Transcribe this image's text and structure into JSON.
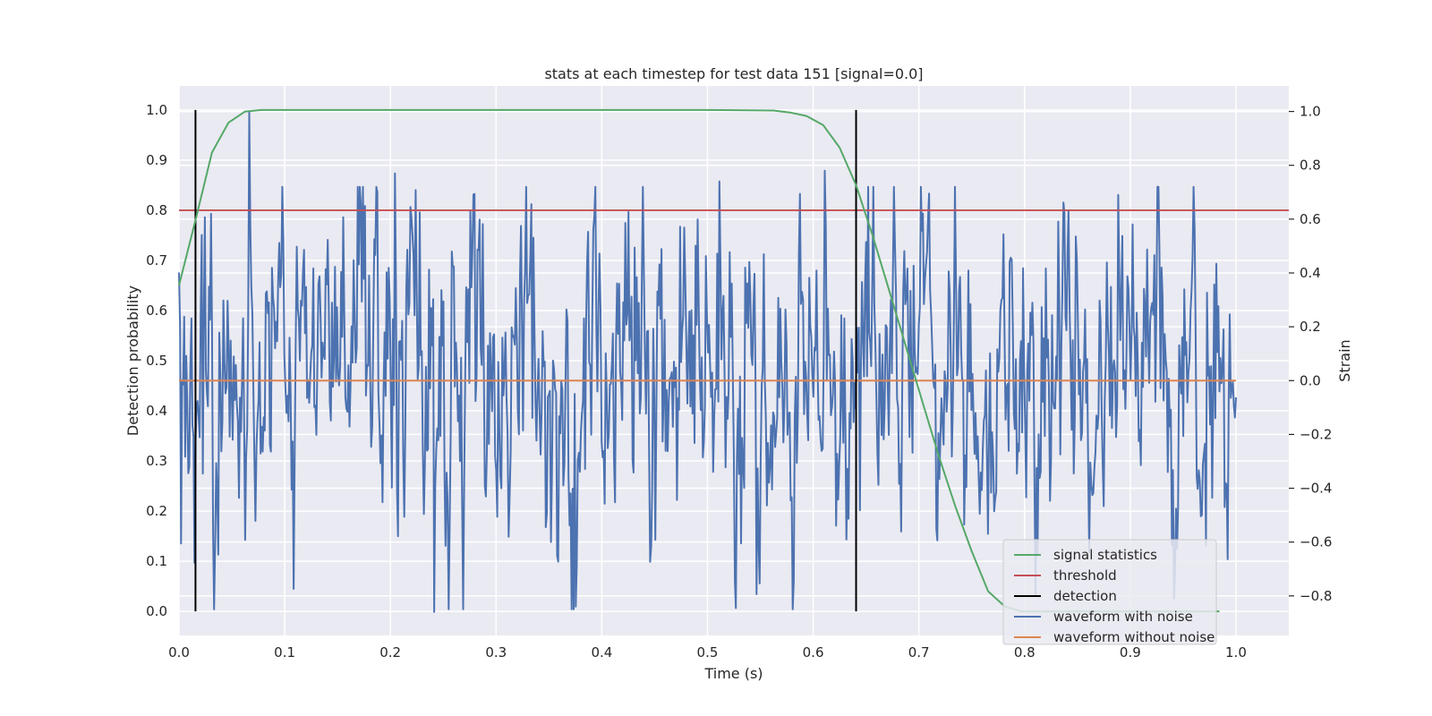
{
  "chart_data": {
    "type": "line",
    "title": "stats at each timestep for test data 151 [signal=0.0]",
    "xlabel": "Time (s)",
    "ylabel": "Detection probability",
    "ylabel_right": "Strain",
    "xlim": [
      0.0,
      1.05
    ],
    "ylim": [
      -0.048,
      1.048
    ],
    "ylim_right": [
      -0.947,
      1.095
    ],
    "grid": true,
    "legend_position": "lower-right",
    "x_ticks": [
      "0.0",
      "0.1",
      "0.2",
      "0.3",
      "0.4",
      "0.5",
      "0.6",
      "0.7",
      "0.8",
      "0.9",
      "1.0"
    ],
    "y_ticks": [
      "0.0",
      "0.1",
      "0.2",
      "0.3",
      "0.4",
      "0.5",
      "0.6",
      "0.7",
      "0.8",
      "0.9",
      "1.0"
    ],
    "y_ticks_right": [
      "−0.8",
      "−0.6",
      "−0.4",
      "−0.2",
      "0.0",
      "0.2",
      "0.4",
      "0.6",
      "0.8",
      "1.0"
    ],
    "series": [
      {
        "name": "signal statistics",
        "axis": "left",
        "color": "#55a868",
        "x": [
          0.0,
          0.0156,
          0.0312,
          0.0469,
          0.0625,
          0.0781,
          0.1,
          0.2,
          0.3,
          0.4,
          0.5,
          0.5625,
          0.5781,
          0.5938,
          0.6094,
          0.625,
          0.6406,
          0.6562,
          0.6719,
          0.6875,
          0.7031,
          0.7188,
          0.7344,
          0.75,
          0.7656,
          0.7812,
          0.7969,
          0.8125,
          0.8281,
          0.8438,
          0.8594,
          0.875,
          0.8906,
          0.9062,
          0.9219,
          0.9375,
          0.9531,
          0.9688,
          0.9844
        ],
        "y": [
          0.65,
          0.78,
          0.915,
          0.975,
          0.997,
          1.0,
          1.0,
          1.0,
          1.0,
          1.0,
          1.0,
          0.999,
          0.995,
          0.988,
          0.97,
          0.925,
          0.85,
          0.75,
          0.64,
          0.53,
          0.42,
          0.31,
          0.21,
          0.12,
          0.04,
          0.01,
          0.0,
          0.0,
          0.0,
          0.0,
          0.0,
          0.0,
          0.0,
          0.0,
          0.0,
          0.0,
          0.0,
          0.0,
          0.0
        ]
      },
      {
        "name": "threshold",
        "axis": "left",
        "color": "#c44e52",
        "x": [
          0.0,
          1.05
        ],
        "y": [
          0.8,
          0.8
        ]
      },
      {
        "name": "detection",
        "axis": "left",
        "color": "#000000",
        "x": [
          0.0156,
          0.6406
        ],
        "y_range": [
          0.0,
          1.0
        ]
      },
      {
        "name": "waveform with noise",
        "axis": "right",
        "color": "#4c72b0",
        "x_range": [
          0.0,
          1.0
        ],
        "samples": 1024,
        "y_range": [
          -0.85,
          1.0
        ],
        "highlight_points": [
          {
            "x": 0.066,
            "y": 1.0
          },
          {
            "x": 0.204,
            "y": 0.77
          },
          {
            "x": 0.241,
            "y": -0.86
          },
          {
            "x": 0.375,
            "y": -0.84
          },
          {
            "x": 0.511,
            "y": 0.74
          },
          {
            "x": 0.611,
            "y": 0.78
          },
          {
            "x": 0.889,
            "y": 0.69
          }
        ]
      },
      {
        "name": "waveform without noise",
        "axis": "right",
        "color": "#dd8452",
        "x": [
          0.0,
          1.0
        ],
        "y": [
          0.0,
          0.0
        ]
      }
    ]
  }
}
